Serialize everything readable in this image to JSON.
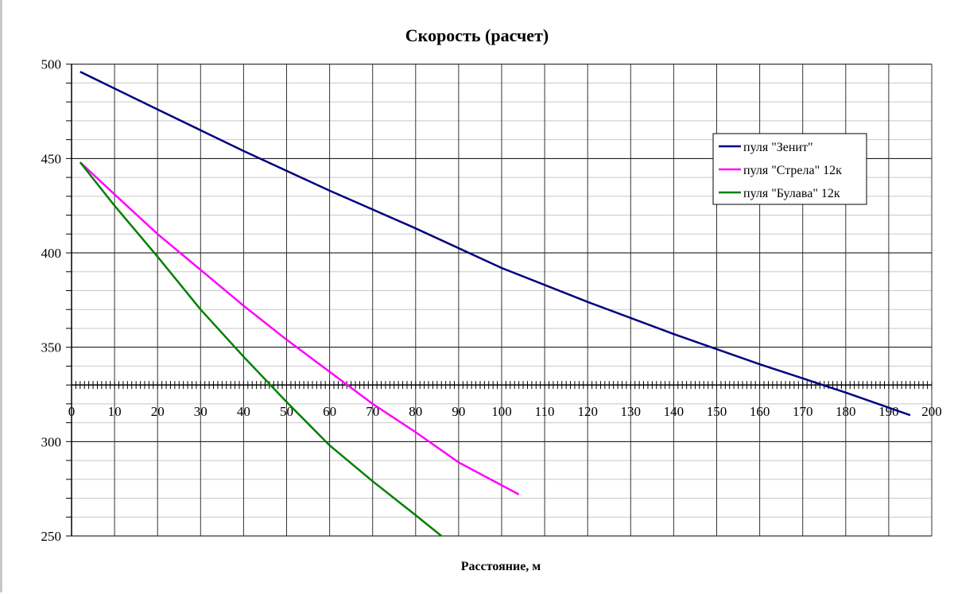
{
  "chart_data": {
    "type": "line",
    "title": "Скорость (расчет)",
    "xlabel": "Расстояние, м",
    "ylabel": "",
    "xlim": [
      0,
      200
    ],
    "ylim": [
      250,
      500
    ],
    "x_axis_crosses_y_at": 330,
    "x_ticks": [
      0,
      10,
      20,
      30,
      40,
      50,
      60,
      70,
      80,
      90,
      100,
      110,
      120,
      130,
      140,
      150,
      160,
      170,
      180,
      190,
      200
    ],
    "y_ticks": [
      250,
      300,
      350,
      400,
      450,
      500
    ],
    "grid": {
      "major": true,
      "minor_y": true
    },
    "legend_position": "right",
    "series": [
      {
        "name": "пуля \"Зенит\"",
        "color": "#000080",
        "x": [
          2,
          20,
          40,
          60,
          80,
          100,
          120,
          140,
          160,
          180,
          195
        ],
        "y": [
          496,
          476,
          454,
          433,
          413,
          392,
          374,
          357,
          341,
          326,
          314
        ]
      },
      {
        "name": "пуля \"Стрела\" 12к",
        "color": "#ff00ff",
        "x": [
          2,
          10,
          20,
          30,
          40,
          50,
          60,
          70,
          80,
          90,
          104
        ],
        "y": [
          448,
          431,
          410,
          391,
          372,
          354,
          337,
          320,
          305,
          289,
          272
        ]
      },
      {
        "name": "пуля \"Булава\" 12к",
        "color": "#008000",
        "x": [
          2,
          10,
          20,
          30,
          40,
          50,
          60,
          70,
          80,
          86
        ],
        "y": [
          448,
          425,
          398,
          370,
          345,
          321,
          298,
          279,
          261,
          250
        ]
      }
    ]
  }
}
